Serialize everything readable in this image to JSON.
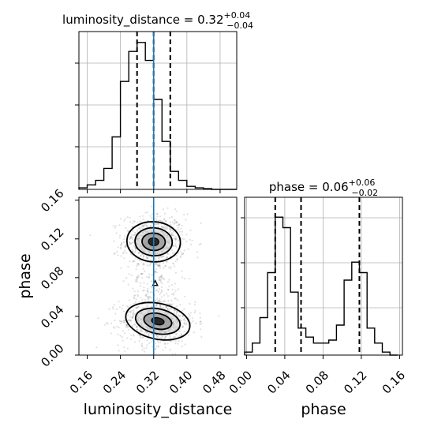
{
  "chart_data": [
    {
      "panel": "luminosity_distance 1D marginal",
      "type": "histogram",
      "title": {
        "param": "luminosity_distance",
        "value": "0.32",
        "plus": "+0.04",
        "minus": "−0.04"
      },
      "xlim": [
        0.14,
        0.52
      ],
      "bin_edges": [
        0.14,
        0.16,
        0.18,
        0.2,
        0.22,
        0.24,
        0.26,
        0.28,
        0.3,
        0.32,
        0.34,
        0.36,
        0.38,
        0.4,
        0.42,
        0.44,
        0.46,
        0.48,
        0.5,
        0.52
      ],
      "relative_counts": [
        0.01,
        0.03,
        0.06,
        0.14,
        0.35,
        0.72,
        0.92,
        0.98,
        0.86,
        0.6,
        0.32,
        0.12,
        0.06,
        0.02,
        0.01,
        0.005,
        0.0,
        0.0,
        0.0
      ],
      "quantile_lines": [
        0.28,
        0.32,
        0.36
      ],
      "truth": 0.32,
      "grid": true
    },
    {
      "panel": "phase 1D marginal",
      "type": "histogram",
      "title": {
        "param": "phase",
        "value": "0.06",
        "plus": "+0.06",
        "minus": "−0.02"
      },
      "xlim": [
        -0.002,
        0.163
      ],
      "bin_edges": [
        -0.002,
        0.006,
        0.014,
        0.022,
        0.03,
        0.038,
        0.046,
        0.054,
        0.062,
        0.07,
        0.078,
        0.086,
        0.094,
        0.102,
        0.11,
        0.118,
        0.126,
        0.134,
        0.142,
        0.15,
        0.158
      ],
      "relative_counts": [
        0.02,
        0.08,
        0.25,
        0.55,
        0.92,
        0.85,
        0.42,
        0.18,
        0.12,
        0.08,
        0.08,
        0.1,
        0.2,
        0.5,
        0.62,
        0.55,
        0.18,
        0.08,
        0.02,
        0.0
      ],
      "quantile_lines": [
        0.03,
        0.057,
        0.118
      ],
      "grid": true
    },
    {
      "panel": "2D joint luminosity_distance vs phase",
      "type": "contour",
      "xlabel": "luminosity_distance",
      "ylabel": "phase",
      "xlim": [
        0.14,
        0.52
      ],
      "ylim": [
        0.0,
        0.163
      ],
      "x_ticks": [
        "0.16",
        "0.24",
        "0.32",
        "0.40",
        "0.48"
      ],
      "y_ticks": [
        "0.00",
        "0.04",
        "0.08",
        "0.12",
        "0.16"
      ],
      "modes": [
        {
          "center": [
            0.32,
            0.117
          ],
          "sx": 0.028,
          "sy": 0.009
        },
        {
          "center": [
            0.33,
            0.035
          ],
          "sx": 0.034,
          "sy": 0.008
        }
      ],
      "truth_x": 0.32
    }
  ],
  "phase_axis": {
    "xlabel": "phase",
    "x_ticks": [
      "0.00",
      "0.04",
      "0.08",
      "0.12",
      "0.16"
    ]
  },
  "colors": {
    "truth": "#1f77b4",
    "line": "#000000",
    "grid": "#b0b0b0",
    "contour_fill": "#808080"
  }
}
